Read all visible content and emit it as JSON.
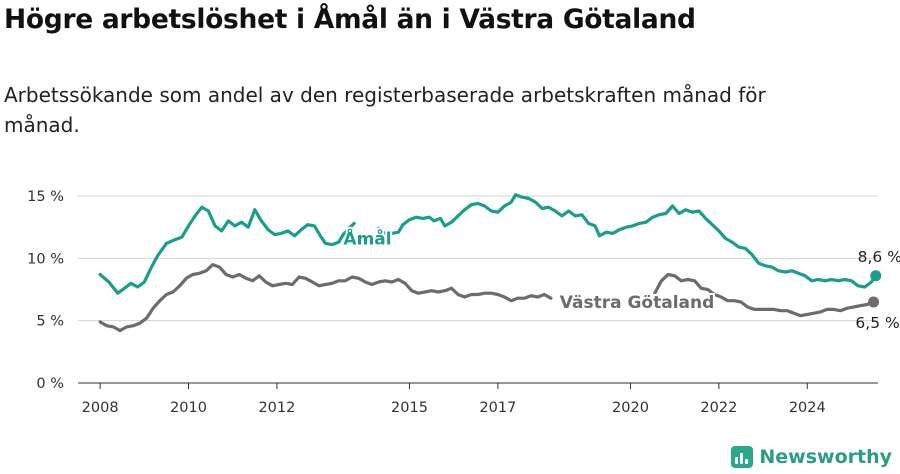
{
  "header": {
    "title": "Högre arbetslöshet i Åmål än i Västra Götaland",
    "subtitle": "Arbetssökande som andel av den registerbaserade arbetskraften månad för månad."
  },
  "brand": {
    "name": "Newsworthy",
    "color": "#2a9d85"
  },
  "chart_data": {
    "type": "line",
    "title": "Högre arbetslöshet i Åmål än i Västra Götaland",
    "subtitle": "Arbetssökande som andel av den registerbaserade arbetskraften månad för månad.",
    "xlabel": "",
    "ylabel": "",
    "xlim": [
      2007.5,
      2025.6
    ],
    "ylim": [
      0,
      15
    ],
    "y_ticks": [
      {
        "value": 0,
        "label": "0 %"
      },
      {
        "value": 5,
        "label": "5 %"
      },
      {
        "value": 10,
        "label": "10 %"
      },
      {
        "value": 15,
        "label": "15 %"
      }
    ],
    "x_ticks": [
      {
        "value": 2008,
        "label": "2008"
      },
      {
        "value": 2010,
        "label": "2010"
      },
      {
        "value": 2012,
        "label": "2012"
      },
      {
        "value": 2015,
        "label": "2015"
      },
      {
        "value": 2017,
        "label": "2017"
      },
      {
        "value": 2020,
        "label": "2020"
      },
      {
        "value": 2022,
        "label": "2022"
      },
      {
        "value": 2024,
        "label": "2024"
      }
    ],
    "grid": true,
    "series": [
      {
        "name": "Åmål",
        "color": "#1a9e8a",
        "end_label": "8,6 %",
        "segments": [
          [
            [
              2008.0,
              8.7
            ],
            [
              2008.2,
              8.1
            ],
            [
              2008.4,
              7.2
            ],
            [
              2008.55,
              7.6
            ],
            [
              2008.7,
              8.0
            ],
            [
              2008.85,
              7.7
            ],
            [
              2009.0,
              8.1
            ],
            [
              2009.15,
              9.2
            ],
            [
              2009.3,
              10.2
            ],
            [
              2009.5,
              11.2
            ],
            [
              2009.7,
              11.5
            ],
            [
              2009.85,
              11.7
            ],
            [
              2010.0,
              12.6
            ],
            [
              2010.15,
              13.4
            ],
            [
              2010.3,
              14.1
            ],
            [
              2010.45,
              13.8
            ],
            [
              2010.6,
              12.6
            ],
            [
              2010.75,
              12.2
            ],
            [
              2010.9,
              13.0
            ],
            [
              2011.05,
              12.6
            ],
            [
              2011.2,
              12.9
            ],
            [
              2011.35,
              12.5
            ],
            [
              2011.5,
              13.9
            ],
            [
              2011.65,
              13.0
            ],
            [
              2011.8,
              12.3
            ],
            [
              2011.95,
              11.9
            ],
            [
              2012.1,
              12.0
            ],
            [
              2012.25,
              12.2
            ],
            [
              2012.4,
              11.8
            ],
            [
              2012.55,
              12.3
            ],
            [
              2012.7,
              12.7
            ],
            [
              2012.85,
              12.6
            ],
            [
              2013.0,
              11.7
            ],
            [
              2013.1,
              11.2
            ],
            [
              2013.25,
              11.1
            ],
            [
              2013.4,
              11.3
            ],
            [
              2013.5,
              11.9
            ],
            [
              2013.6,
              12.3
            ],
            [
              2013.75,
              12.8
            ]
          ],
          [
            [
              2014.3,
              12.4
            ],
            [
              2014.45,
              12.0
            ],
            [
              2014.6,
              12.0
            ],
            [
              2014.75,
              12.1
            ],
            [
              2014.85,
              12.7
            ],
            [
              2015.0,
              13.1
            ],
            [
              2015.15,
              13.3
            ],
            [
              2015.3,
              13.2
            ],
            [
              2015.45,
              13.3
            ],
            [
              2015.55,
              13.0
            ],
            [
              2015.7,
              13.2
            ],
            [
              2015.8,
              12.6
            ],
            [
              2015.95,
              12.9
            ],
            [
              2016.1,
              13.4
            ],
            [
              2016.25,
              13.9
            ],
            [
              2016.4,
              14.3
            ],
            [
              2016.55,
              14.4
            ],
            [
              2016.7,
              14.2
            ],
            [
              2016.85,
              13.8
            ],
            [
              2017.0,
              13.7
            ],
            [
              2017.15,
              14.2
            ],
            [
              2017.3,
              14.5
            ],
            [
              2017.4,
              15.1
            ],
            [
              2017.55,
              14.9
            ],
            [
              2017.7,
              14.8
            ],
            [
              2017.85,
              14.5
            ],
            [
              2018.0,
              14.0
            ],
            [
              2018.15,
              14.1
            ],
            [
              2018.3,
              13.8
            ],
            [
              2018.45,
              13.4
            ],
            [
              2018.6,
              13.8
            ],
            [
              2018.75,
              13.4
            ],
            [
              2018.9,
              13.5
            ],
            [
              2019.05,
              12.8
            ],
            [
              2019.2,
              12.6
            ],
            [
              2019.3,
              11.8
            ],
            [
              2019.45,
              12.1
            ],
            [
              2019.6,
              12.0
            ],
            [
              2019.75,
              12.3
            ],
            [
              2019.9,
              12.5
            ],
            [
              2020.05,
              12.6
            ],
            [
              2020.2,
              12.8
            ],
            [
              2020.35,
              12.9
            ],
            [
              2020.5,
              13.3
            ],
            [
              2020.65,
              13.5
            ],
            [
              2020.8,
              13.6
            ],
            [
              2020.95,
              14.2
            ],
            [
              2021.1,
              13.6
            ],
            [
              2021.25,
              13.9
            ],
            [
              2021.4,
              13.7
            ],
            [
              2021.55,
              13.8
            ],
            [
              2021.7,
              13.2
            ],
            [
              2021.85,
              12.7
            ],
            [
              2022.0,
              12.2
            ],
            [
              2022.15,
              11.6
            ],
            [
              2022.3,
              11.3
            ],
            [
              2022.45,
              10.9
            ],
            [
              2022.6,
              10.8
            ],
            [
              2022.75,
              10.3
            ],
            [
              2022.9,
              9.6
            ],
            [
              2023.05,
              9.4
            ],
            [
              2023.2,
              9.3
            ],
            [
              2023.35,
              9.0
            ],
            [
              2023.5,
              8.9
            ],
            [
              2023.65,
              9.0
            ],
            [
              2023.8,
              8.8
            ],
            [
              2023.95,
              8.6
            ],
            [
              2024.1,
              8.2
            ],
            [
              2024.25,
              8.3
            ],
            [
              2024.4,
              8.2
            ],
            [
              2024.55,
              8.3
            ],
            [
              2024.7,
              8.2
            ],
            [
              2024.85,
              8.3
            ],
            [
              2025.0,
              8.2
            ],
            [
              2025.15,
              7.8
            ],
            [
              2025.3,
              7.7
            ],
            [
              2025.45,
              8.1
            ],
            [
              2025.55,
              8.6
            ]
          ]
        ]
      },
      {
        "name": "Västra Götaland",
        "color": "#6b6b70",
        "end_label": "6,5 %",
        "segments": [
          [
            [
              2008.0,
              4.9
            ],
            [
              2008.15,
              4.6
            ],
            [
              2008.3,
              4.5
            ],
            [
              2008.45,
              4.2
            ],
            [
              2008.6,
              4.5
            ],
            [
              2008.75,
              4.6
            ],
            [
              2008.9,
              4.8
            ],
            [
              2009.05,
              5.2
            ],
            [
              2009.2,
              6.0
            ],
            [
              2009.35,
              6.6
            ],
            [
              2009.5,
              7.1
            ],
            [
              2009.65,
              7.3
            ],
            [
              2009.8,
              7.8
            ],
            [
              2009.95,
              8.4
            ],
            [
              2010.1,
              8.7
            ],
            [
              2010.25,
              8.8
            ],
            [
              2010.4,
              9.0
            ],
            [
              2010.55,
              9.5
            ],
            [
              2010.7,
              9.3
            ],
            [
              2010.85,
              8.7
            ],
            [
              2011.0,
              8.5
            ],
            [
              2011.15,
              8.7
            ],
            [
              2011.3,
              8.4
            ],
            [
              2011.45,
              8.2
            ],
            [
              2011.6,
              8.6
            ],
            [
              2011.75,
              8.1
            ],
            [
              2011.9,
              7.8
            ],
            [
              2012.05,
              7.9
            ],
            [
              2012.2,
              8.0
            ],
            [
              2012.35,
              7.9
            ],
            [
              2012.5,
              8.5
            ],
            [
              2012.65,
              8.4
            ],
            [
              2012.8,
              8.1
            ],
            [
              2012.95,
              7.8
            ],
            [
              2013.1,
              7.9
            ],
            [
              2013.25,
              8.0
            ],
            [
              2013.4,
              8.2
            ],
            [
              2013.55,
              8.2
            ],
            [
              2013.7,
              8.5
            ],
            [
              2013.85,
              8.4
            ],
            [
              2014.0,
              8.1
            ],
            [
              2014.15,
              7.9
            ],
            [
              2014.3,
              8.1
            ],
            [
              2014.45,
              8.2
            ],
            [
              2014.6,
              8.1
            ],
            [
              2014.75,
              8.3
            ],
            [
              2014.9,
              8.0
            ],
            [
              2015.05,
              7.4
            ],
            [
              2015.2,
              7.2
            ],
            [
              2015.35,
              7.3
            ],
            [
              2015.5,
              7.4
            ],
            [
              2015.65,
              7.3
            ],
            [
              2015.8,
              7.4
            ],
            [
              2015.95,
              7.6
            ],
            [
              2016.1,
              7.1
            ],
            [
              2016.25,
              6.9
            ],
            [
              2016.4,
              7.1
            ],
            [
              2016.55,
              7.1
            ],
            [
              2016.7,
              7.2
            ],
            [
              2016.85,
              7.2
            ],
            [
              2017.0,
              7.1
            ],
            [
              2017.15,
              6.9
            ],
            [
              2017.3,
              6.6
            ],
            [
              2017.45,
              6.8
            ],
            [
              2017.6,
              6.8
            ],
            [
              2017.75,
              7.0
            ],
            [
              2017.9,
              6.9
            ],
            [
              2018.05,
              7.1
            ],
            [
              2018.2,
              6.8
            ]
          ],
          [
            [
              2020.55,
              7.2
            ],
            [
              2020.7,
              8.2
            ],
            [
              2020.85,
              8.7
            ],
            [
              2021.0,
              8.6
            ],
            [
              2021.15,
              8.2
            ],
            [
              2021.3,
              8.3
            ],
            [
              2021.45,
              8.2
            ],
            [
              2021.6,
              7.6
            ],
            [
              2021.75,
              7.5
            ],
            [
              2021.9,
              7.1
            ],
            [
              2022.05,
              6.9
            ],
            [
              2022.2,
              6.6
            ],
            [
              2022.35,
              6.6
            ],
            [
              2022.5,
              6.5
            ],
            [
              2022.65,
              6.1
            ],
            [
              2022.8,
              5.9
            ],
            [
              2022.95,
              5.9
            ],
            [
              2023.1,
              5.9
            ],
            [
              2023.25,
              5.9
            ],
            [
              2023.4,
              5.8
            ],
            [
              2023.55,
              5.8
            ],
            [
              2023.7,
              5.6
            ],
            [
              2023.85,
              5.4
            ],
            [
              2024.0,
              5.5
            ],
            [
              2024.15,
              5.6
            ],
            [
              2024.3,
              5.7
            ],
            [
              2024.45,
              5.9
            ],
            [
              2024.6,
              5.9
            ],
            [
              2024.75,
              5.8
            ],
            [
              2024.9,
              6.0
            ],
            [
              2025.05,
              6.1
            ],
            [
              2025.2,
              6.2
            ],
            [
              2025.35,
              6.3
            ],
            [
              2025.5,
              6.5
            ]
          ]
        ]
      }
    ]
  }
}
